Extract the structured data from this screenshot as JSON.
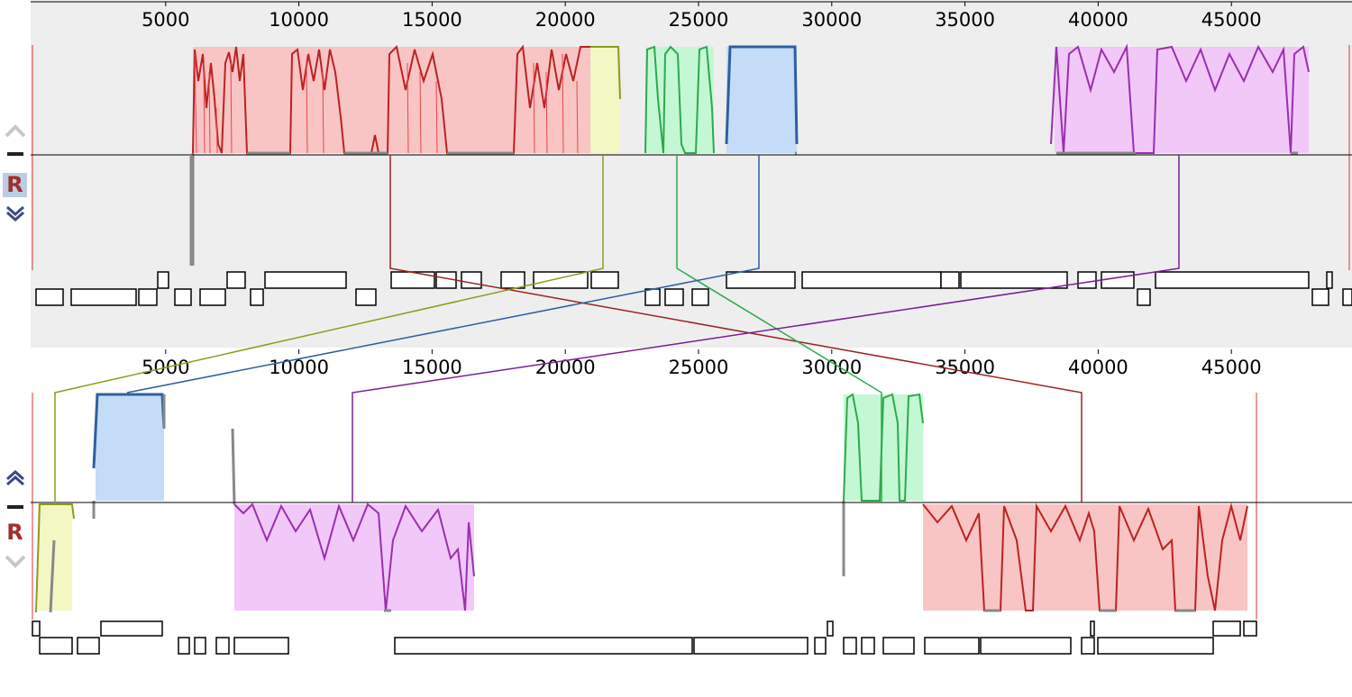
{
  "genome_a": {
    "ruler": {
      "labels": [
        "5000",
        "10000",
        "15000",
        "20000",
        "25000",
        "30000",
        "35000",
        "40000",
        "45000"
      ],
      "values": [
        5000,
        10000,
        15000,
        20000,
        25000,
        30000,
        35000,
        40000,
        45000
      ]
    },
    "controls": {
      "up_icon": "chevron-up-icon",
      "minus_icon": "minus-icon",
      "r_label": "R",
      "down_icon": "double-chevron-down-icon"
    }
  },
  "genome_b": {
    "ruler": {
      "labels": [
        "5000",
        "10000",
        "15000",
        "20000",
        "25000",
        "30000",
        "35000",
        "40000",
        "45000"
      ],
      "values": [
        5000,
        10000,
        15000,
        20000,
        25000,
        30000,
        35000,
        40000,
        45000
      ]
    },
    "controls": {
      "up_icon": "double-chevron-up-icon",
      "minus_icon": "minus-icon",
      "r_label": "R",
      "down_icon": "chevron-down-icon"
    }
  },
  "colors": {
    "red": "#e8464a",
    "red_fill": "#f9c4c4",
    "red_line": "#9b2323",
    "yellow": "#8e9a1e",
    "yellow_fill": "#f2f7c4",
    "green": "#2fa84e",
    "green_fill": "#c4f7d4",
    "blue": "#2f5f9f",
    "blue_fill": "#c4dcf7",
    "purple": "#b040c8",
    "purple_fill": "#f1c8f7",
    "gray_profile": "#888888"
  }
}
